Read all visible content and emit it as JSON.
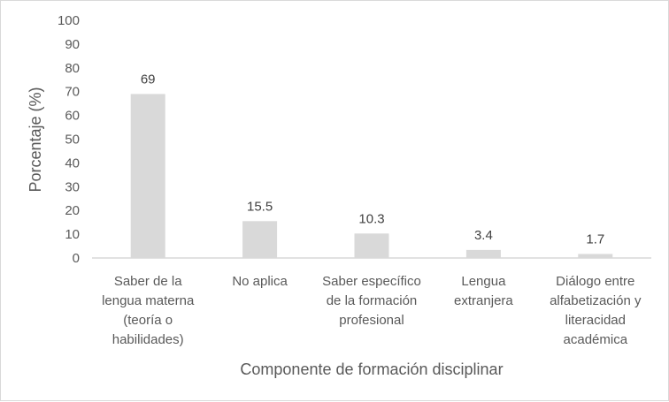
{
  "chart_data": {
    "type": "bar",
    "categories": [
      [
        "Saber de la",
        "lengua materna",
        "(teoría o",
        "habilidades)"
      ],
      [
        "No aplica"
      ],
      [
        "Saber específico",
        "de la formación",
        "profesional"
      ],
      [
        "Lengua",
        "extranjera"
      ],
      [
        "Diálogo entre",
        "alfabetización y",
        "literacidad",
        "académica"
      ]
    ],
    "values": [
      69,
      15.5,
      10.3,
      3.4,
      1.7
    ],
    "data_labels": [
      "69",
      "15.5",
      "10.3",
      "3.4",
      "1.7"
    ],
    "title": "",
    "xlabel": "Componente de formación disciplinar",
    "ylabel": "Porcentaje (%)",
    "ylim": [
      0,
      100
    ],
    "yticks": [
      0,
      10,
      20,
      30,
      40,
      50,
      60,
      70,
      80,
      90,
      100
    ],
    "grid": false,
    "legend": "none",
    "colors": {
      "bar": "#d9d9d9",
      "axis": "#d9d9d9",
      "text": "#595959"
    }
  }
}
